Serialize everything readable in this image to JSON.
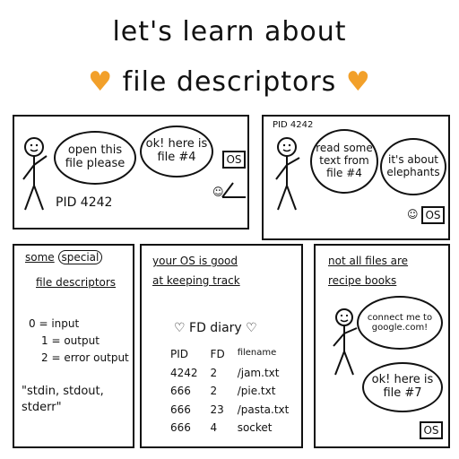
{
  "title": {
    "line1": "let's learn about",
    "line2": "file descriptors",
    "heart_color": "#f2a02a"
  },
  "panel1": {
    "bubble1": "open this file please",
    "bubble2": "ok! here is file #4",
    "os_label": "OS",
    "pid_label": "PID 4242"
  },
  "panel2": {
    "pid_label": "PID 4242",
    "bubble1": "read some text from file #4",
    "bubble2": "it's about elephants",
    "os_label": "OS"
  },
  "panel3": {
    "heading_some": "some",
    "heading_special": "special",
    "heading_rest": "file descriptors",
    "items": [
      "0 = input",
      "1 = output",
      "2 = error output"
    ],
    "names": "\"stdin, stdout, stderr\""
  },
  "panel4": {
    "heading_line1": "your OS is good",
    "heading_line2": "at keeping track",
    "diary_title": "FD diary",
    "columns": [
      "PID",
      "FD",
      "filename"
    ],
    "rows": [
      [
        "4242",
        "2",
        "/jam.txt"
      ],
      [
        "666",
        "2",
        "/pie.txt"
      ],
      [
        "666",
        "23",
        "/pasta.txt"
      ],
      [
        "666",
        "4",
        "socket"
      ]
    ]
  },
  "panel5": {
    "heading_line1": "not all files are",
    "heading_line2": "recipe books",
    "bubble1": "connect me to google.com!",
    "bubble2": "ok! here is file #7",
    "os_label": "OS"
  }
}
